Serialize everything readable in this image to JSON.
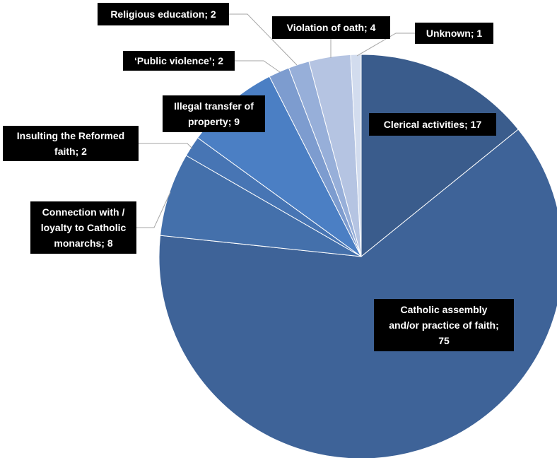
{
  "chart_data": {
    "type": "pie",
    "title": "",
    "start_angle_deg": 0,
    "direction": "clockwise",
    "slices": [
      {
        "label": "Clerical activities",
        "value": 17,
        "color": "#3a5c8c",
        "display": [
          "Clerical activities; 17"
        ]
      },
      {
        "label": "Catholic assembly and/or practice of faith",
        "value": 75,
        "color": "#3e6398",
        "display": [
          "Catholic assembly",
          "and/or practice of faith;",
          "75"
        ]
      },
      {
        "label": "Connection with / loyalty to Catholic monarchs",
        "value": 8,
        "color": "#4470ab",
        "display": [
          "Connection with /",
          "loyalty to Catholic",
          "monarchs; 8"
        ]
      },
      {
        "label": "Insulting the Reformed faith",
        "value": 2,
        "color": "#4775b4",
        "display": [
          "Insulting the Reformed",
          "faith; 2"
        ]
      },
      {
        "label": "Illegal transfer of property",
        "value": 9,
        "color": "#4b7fc4",
        "display": [
          "Illegal transfer of",
          "property; 9"
        ]
      },
      {
        "label": "‘Public violence’",
        "value": 2,
        "color": "#7d9ccf",
        "display": [
          "‘Public violence’; 2"
        ]
      },
      {
        "label": "Religious education",
        "value": 2,
        "color": "#97afd9",
        "display": [
          "Religious education; 2"
        ]
      },
      {
        "label": "Violation of oath",
        "value": 4,
        "color": "#b5c4e2",
        "display": [
          "Violation of oath; 4"
        ]
      },
      {
        "label": "Unknown",
        "value": 1,
        "color": "#d2dcee",
        "display": [
          "Unknown; 1"
        ]
      }
    ],
    "legend": "none",
    "data_labels": "category; value"
  }
}
